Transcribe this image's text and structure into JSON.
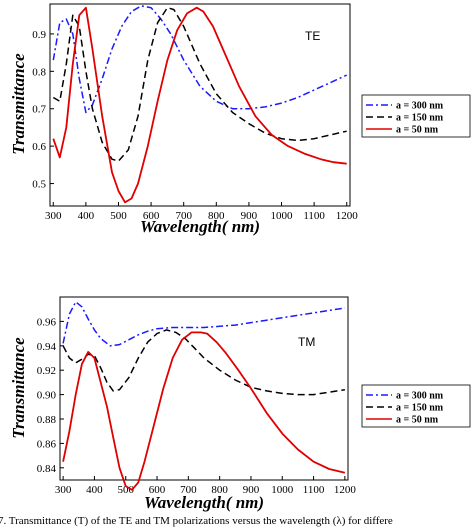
{
  "caption": "7.  Transmittance (T) of the TE and TM polarizations versus the wavelength (λ) for differe",
  "chart_data": [
    {
      "type": "line",
      "panel_label": "TE",
      "xlabel": "Wavelength( nm)",
      "ylabel": "Transmittance",
      "xlim": [
        290,
        1210
      ],
      "ylim": [
        0.44,
        0.98
      ],
      "xticks": [
        300,
        400,
        500,
        600,
        700,
        800,
        900,
        1000,
        1100,
        1200
      ],
      "yticks": [
        0.5,
        0.6,
        0.7,
        0.8,
        0.9
      ],
      "ytick_labels": [
        "0.5",
        "0.6",
        "0.7",
        "0.8",
        "0.9"
      ],
      "legend_position": "right",
      "series": [
        {
          "name": "a = 300 nm",
          "color": "#1a1aff",
          "style": "dashdot",
          "x": [
            300,
            320,
            340,
            360,
            380,
            400,
            420,
            450,
            480,
            510,
            540,
            570,
            600,
            630,
            660,
            700,
            750,
            800,
            850,
            900,
            950,
            1000,
            1050,
            1100,
            1150,
            1200
          ],
          "y": [
            0.83,
            0.93,
            0.94,
            0.9,
            0.78,
            0.69,
            0.71,
            0.78,
            0.86,
            0.92,
            0.96,
            0.975,
            0.97,
            0.94,
            0.9,
            0.83,
            0.76,
            0.72,
            0.7,
            0.7,
            0.705,
            0.715,
            0.73,
            0.75,
            0.77,
            0.79
          ]
        },
        {
          "name": "a = 150 nm",
          "color": "#000000",
          "style": "dash",
          "x": [
            300,
            320,
            340,
            360,
            380,
            400,
            420,
            450,
            480,
            500,
            530,
            560,
            590,
            620,
            650,
            670,
            700,
            750,
            800,
            850,
            900,
            950,
            1000,
            1050,
            1100,
            1150,
            1200
          ],
          "y": [
            0.73,
            0.72,
            0.82,
            0.95,
            0.92,
            0.8,
            0.7,
            0.61,
            0.565,
            0.56,
            0.59,
            0.68,
            0.83,
            0.93,
            0.97,
            0.965,
            0.92,
            0.82,
            0.74,
            0.69,
            0.66,
            0.635,
            0.62,
            0.615,
            0.62,
            0.63,
            0.64
          ]
        },
        {
          "name": "a = 50 nm",
          "color": "#e00000",
          "style": "solid",
          "x": [
            300,
            320,
            340,
            360,
            380,
            400,
            420,
            450,
            480,
            500,
            520,
            540,
            560,
            590,
            620,
            650,
            680,
            710,
            740,
            760,
            790,
            830,
            870,
            920,
            970,
            1020,
            1070,
            1120,
            1160,
            1200
          ],
          "y": [
            0.62,
            0.57,
            0.65,
            0.82,
            0.95,
            0.97,
            0.86,
            0.68,
            0.53,
            0.48,
            0.45,
            0.46,
            0.5,
            0.6,
            0.72,
            0.83,
            0.91,
            0.955,
            0.97,
            0.96,
            0.92,
            0.84,
            0.76,
            0.68,
            0.63,
            0.6,
            0.58,
            0.565,
            0.557,
            0.553
          ]
        }
      ]
    },
    {
      "type": "line",
      "panel_label": "TM",
      "xlabel": "Wavelength( nm)",
      "ylabel": "Transmittance",
      "xlim": [
        290,
        1210
      ],
      "ylim": [
        0.83,
        0.98
      ],
      "xticks": [
        300,
        400,
        500,
        600,
        700,
        800,
        900,
        1000,
        1100,
        1200
      ],
      "yticks": [
        0.84,
        0.86,
        0.88,
        0.9,
        0.92,
        0.94,
        0.96
      ],
      "ytick_labels": [
        "0.84",
        "0.86",
        "0.88",
        "0.90",
        "0.92",
        "0.94",
        "0.96"
      ],
      "legend_position": "right",
      "series": [
        {
          "name": "a = 300 nm",
          "color": "#1a1aff",
          "style": "dashdot",
          "x": [
            300,
            320,
            340,
            360,
            380,
            400,
            420,
            450,
            480,
            510,
            540,
            570,
            600,
            650,
            700,
            750,
            800,
            850,
            900,
            950,
            1000,
            1050,
            1100,
            1150,
            1200
          ],
          "y": [
            0.942,
            0.966,
            0.976,
            0.972,
            0.962,
            0.953,
            0.946,
            0.94,
            0.941,
            0.945,
            0.949,
            0.952,
            0.954,
            0.955,
            0.955,
            0.955,
            0.956,
            0.957,
            0.959,
            0.961,
            0.963,
            0.965,
            0.967,
            0.969,
            0.971
          ]
        },
        {
          "name": "a = 150 nm",
          "color": "#000000",
          "style": "dash",
          "x": [
            300,
            320,
            340,
            360,
            380,
            400,
            420,
            440,
            460,
            480,
            510,
            540,
            570,
            600,
            630,
            660,
            690,
            720,
            750,
            800,
            850,
            900,
            950,
            1000,
            1050,
            1100,
            1150,
            1200
          ],
          "y": [
            0.94,
            0.93,
            0.926,
            0.929,
            0.933,
            0.932,
            0.922,
            0.91,
            0.903,
            0.904,
            0.914,
            0.93,
            0.943,
            0.95,
            0.953,
            0.951,
            0.946,
            0.938,
            0.93,
            0.92,
            0.912,
            0.906,
            0.903,
            0.901,
            0.9,
            0.9,
            0.902,
            0.904
          ]
        },
        {
          "name": "a = 50 nm",
          "color": "#e00000",
          "style": "solid",
          "x": [
            300,
            320,
            340,
            360,
            380,
            400,
            420,
            440,
            460,
            480,
            500,
            520,
            540,
            560,
            590,
            620,
            650,
            680,
            710,
            740,
            760,
            790,
            820,
            860,
            900,
            950,
            1000,
            1050,
            1100,
            1150,
            1200
          ],
          "y": [
            0.845,
            0.87,
            0.9,
            0.925,
            0.935,
            0.93,
            0.91,
            0.89,
            0.865,
            0.84,
            0.825,
            0.822,
            0.828,
            0.845,
            0.875,
            0.905,
            0.93,
            0.945,
            0.951,
            0.951,
            0.95,
            0.943,
            0.934,
            0.92,
            0.905,
            0.885,
            0.868,
            0.855,
            0.845,
            0.839,
            0.836
          ]
        }
      ]
    }
  ]
}
